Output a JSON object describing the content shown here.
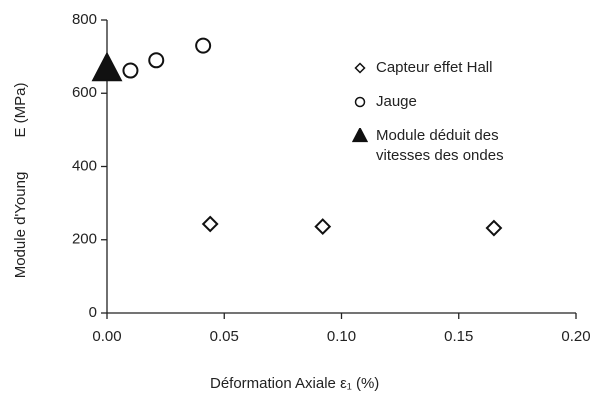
{
  "chart_data": {
    "type": "scatter",
    "x_label": "Déformation Axiale ε₁ (%)",
    "y_label": "Module d'Young",
    "y_label_unit": "E (MPa)",
    "xlim": [
      0,
      0.2
    ],
    "xticks": [
      {
        "value": 0,
        "label": "0.00"
      },
      {
        "value": 0.05,
        "label": "0.05"
      },
      {
        "value": 0.1,
        "label": "0.10"
      },
      {
        "value": 0.15,
        "label": "0.15"
      },
      {
        "value": 0.2,
        "label": "0.20"
      }
    ],
    "ylim": [
      0,
      800
    ],
    "yticks": [
      0,
      200,
      400,
      600,
      800
    ],
    "grid": false,
    "series": [
      {
        "name": "Capteur effet Hall",
        "marker": "diamond",
        "color": "#111",
        "x": [
          0.044,
          0.092,
          0.165
        ],
        "values": [
          243,
          236,
          232
        ]
      },
      {
        "name": "Jauge",
        "marker": "circle",
        "color": "#111",
        "x": [
          0.01,
          0.021,
          0.041
        ],
        "values": [
          662,
          690,
          730
        ]
      },
      {
        "name": "Module déduit des vitesses des ondes",
        "marker": "triangle",
        "color": "#111",
        "x": [
          0
        ],
        "values": [
          665
        ]
      }
    ]
  }
}
